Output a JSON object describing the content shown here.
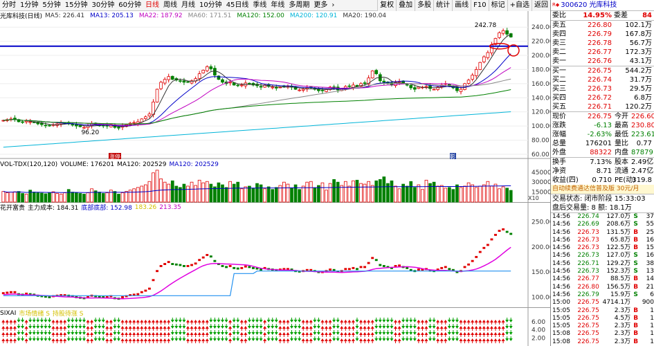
{
  "toolbar": {
    "timeframes": [
      "分时",
      "1分钟",
      "5分钟",
      "15分钟",
      "30分钟",
      "60分钟",
      "日线",
      "周线",
      "月线",
      "10分钟",
      "45日线",
      "季线",
      "年线",
      "多周期",
      "更多"
    ],
    "active_timeframe": "日线",
    "dropdown_glyph": "›",
    "buttons": [
      "复权",
      "叠加",
      "多股",
      "统计",
      "画线",
      "F10",
      "标记",
      "+自选",
      "返回"
    ]
  },
  "main_chart": {
    "title": "光库科技(日线)",
    "indicators": [
      {
        "label": "MA5: 226.41",
        "color": "#333333"
      },
      {
        "label": "MA13: 205.13",
        "color": "#0000c8"
      },
      {
        "label": "MA22: 187.92",
        "color": "#c000c0"
      },
      {
        "label": "MA60: 171.51",
        "color": "#888888"
      },
      {
        "label": "MA120: 152.00",
        "color": "#008000"
      },
      {
        "label": "MA200: 120.91",
        "color": "#00b4d8"
      },
      {
        "label": "MA20: 190.04",
        "color": "#333333"
      }
    ],
    "high_label": "242.78",
    "low_label": "96.20",
    "badge_left": "涨停",
    "badge_right": "影",
    "y_ticks": [
      "240.00",
      "220.00",
      "200.00",
      "180.00",
      "160.00",
      "140.00",
      "120.00",
      "100.00",
      "80.00",
      "60.00"
    ],
    "ylim": [
      55,
      250
    ]
  },
  "volume_chart": {
    "header": [
      {
        "label": "VOL-TDX(120,120)",
        "color": "#000000"
      },
      {
        "label": "VOLUME: 176201",
        "color": "#000000"
      },
      {
        "label": "MA120: 202529",
        "color": "#000000"
      },
      {
        "label": "MA120: 202529",
        "color": "#0000c8"
      }
    ],
    "y_ticks": [
      "45000",
      "30000",
      "15000"
    ],
    "unit": "X10"
  },
  "cost_chart": {
    "header": [
      {
        "label": "花开富贵",
        "color": "#000000"
      },
      {
        "label": "主力成本: 184.31",
        "color": "#000000"
      },
      {
        "label": "底部底部: 152.98",
        "color": "#0000c8"
      },
      {
        "label": "183.26",
        "color": "#d4c000"
      },
      {
        "label": "213.35",
        "color": "#c000c0"
      }
    ],
    "y_ticks": [
      "250.00",
      "200.00",
      "150.00",
      "100.00"
    ]
  },
  "signal_chart": {
    "header": [
      {
        "label": "SIXAI",
        "color": "#000000"
      },
      {
        "label": "市场情绪 S",
        "color": "#d4c000"
      },
      {
        "label": "持股待涨 S",
        "color": "#d4c000"
      }
    ],
    "y_ticks": [
      "6.00",
      "4.00",
      "2.00"
    ]
  },
  "quote": {
    "header_code": "300620",
    "header_name": "光库科技",
    "weibi": {
      "label": "委比",
      "value": "14.95%",
      "label2": "委差",
      "value2": "84"
    },
    "asks": [
      {
        "label": "卖五",
        "price": "226.80",
        "vol": "102.1万"
      },
      {
        "label": "卖四",
        "price": "226.79",
        "vol": "167.8万"
      },
      {
        "label": "卖三",
        "price": "226.78",
        "vol": "56.7万"
      },
      {
        "label": "卖二",
        "price": "226.77",
        "vol": "172.3万"
      },
      {
        "label": "卖一",
        "price": "226.76",
        "vol": "43.1万"
      }
    ],
    "bids": [
      {
        "label": "买一",
        "price": "226.75",
        "vol": "544.2万"
      },
      {
        "label": "买二",
        "price": "226.74",
        "vol": "31.7万"
      },
      {
        "label": "买三",
        "price": "226.73",
        "vol": "29.5万"
      },
      {
        "label": "买四",
        "price": "226.72",
        "vol": "6.8万"
      },
      {
        "label": "买五",
        "price": "226.71",
        "vol": "120.2万"
      }
    ],
    "stats": [
      {
        "l1": "现价",
        "v1": "226.75",
        "c1": "red",
        "l2": "今开",
        "v2": "226.60",
        "c2": "red"
      },
      {
        "l1": "涨跌",
        "v1": "-6.13",
        "c1": "green",
        "l2": "最高",
        "v2": "230.80",
        "c2": "red"
      },
      {
        "l1": "涨幅",
        "v1": "-2.63%",
        "c1": "green",
        "l2": "最低",
        "v2": "223.61",
        "c2": "green"
      },
      {
        "l1": "总量",
        "v1": "176201",
        "c1": "black",
        "l2": "量比",
        "v2": "0.77",
        "c2": "black"
      },
      {
        "l1": "外盘",
        "v1": "88322",
        "c1": "red",
        "l2": "内盘",
        "v2": "87879",
        "c2": "green"
      }
    ],
    "stats2": [
      {
        "l1": "换手",
        "v1": "7.13%",
        "l2": "股本",
        "v2": "2.49亿"
      },
      {
        "l1": "净资",
        "v1": "8.71",
        "l2": "流通",
        "v2": "2.47亿"
      },
      {
        "l1": "收益(四)",
        "v1": "0.710",
        "l2": "PE(动)",
        "v2": "319.8"
      }
    ],
    "promo": "自动续费通达信普及版 30元/月",
    "status_line": "交易状态: 闭市阶段 15:33:03",
    "after_hours": "盘后交易量: 8  额: 18.1万",
    "ticks": [
      {
        "t": "14:56",
        "p": "226.74",
        "v": "127.0万",
        "s": "S",
        "n": "37"
      },
      {
        "t": "14:56",
        "p": "226.69",
        "v": "208.6万",
        "s": "S",
        "n": "55"
      },
      {
        "t": "14:56",
        "p": "226.73",
        "v": "131.5万",
        "s": "B",
        "n": "25"
      },
      {
        "t": "14:56",
        "p": "226.73",
        "v": "65.8万",
        "s": "B",
        "n": "16"
      },
      {
        "t": "14:56",
        "p": "226.73",
        "v": "122.5万",
        "s": "B",
        "n": "15"
      },
      {
        "t": "14:56",
        "p": "226.73",
        "v": "127.0万",
        "s": "S",
        "n": "16"
      },
      {
        "t": "14:56",
        "p": "226.71",
        "v": "129.2万",
        "s": "S",
        "n": "38"
      },
      {
        "t": "14:56",
        "p": "226.73",
        "v": "152.3万",
        "s": "S",
        "n": "13"
      },
      {
        "t": "14:56",
        "p": "226.77",
        "v": "88.5万",
        "s": "B",
        "n": "14"
      },
      {
        "t": "14:56",
        "p": "226.80",
        "v": "156.5万",
        "s": "B",
        "n": "21"
      },
      {
        "t": "14:56",
        "p": "226.79",
        "v": "15.9万",
        "s": "S",
        "n": "6"
      },
      {
        "t": "15:00",
        "p": "226.75",
        "v": "4714.1万",
        "s": "",
        "n": "900"
      },
      {
        "t": "15:05",
        "p": "226.75",
        "v": "2.3万",
        "s": "B",
        "n": "1"
      },
      {
        "t": "15:05",
        "p": "226.75",
        "v": "4.5万",
        "s": "B",
        "n": "1"
      },
      {
        "t": "15:05",
        "p": "226.75",
        "v": "2.3万",
        "s": "B",
        "n": "1"
      },
      {
        "t": "15:08",
        "p": "226.75",
        "v": "2.3万",
        "s": "B",
        "n": "1"
      },
      {
        "t": "15:08",
        "p": "226.75",
        "v": "2.3万",
        "s": "B",
        "n": "1"
      }
    ]
  },
  "chart_data": [
    {
      "type": "candlestick",
      "title": "光库科技(日线)",
      "ylim": [
        55,
        250
      ],
      "closes": [
        108,
        109,
        110,
        110,
        106,
        105,
        107,
        106,
        105,
        103,
        102,
        101,
        100,
        102,
        103,
        104,
        104,
        103,
        102,
        100,
        99,
        98,
        100,
        103,
        102,
        101,
        100,
        100,
        102,
        98,
        97,
        100,
        102,
        104,
        105,
        106,
        110,
        113,
        117,
        134,
        152,
        162,
        166,
        170,
        166,
        165,
        164,
        162,
        162,
        164,
        167,
        174,
        179,
        184,
        181,
        172,
        166,
        162,
        160,
        162,
        158,
        157,
        158,
        161,
        160,
        158,
        157,
        155,
        158,
        156,
        155,
        154,
        155,
        156,
        156,
        155,
        152,
        151,
        152,
        154,
        154,
        152,
        150,
        150,
        152,
        155,
        154,
        151,
        152,
        156,
        156,
        158,
        156,
        160,
        160,
        168,
        178,
        174,
        164,
        162,
        160,
        158,
        162,
        163,
        160,
        158,
        154,
        152,
        155,
        155,
        156,
        153,
        152,
        155,
        158,
        160,
        156,
        154,
        150,
        152,
        160,
        165,
        172,
        180,
        190,
        198,
        204,
        215,
        224,
        232,
        235,
        230,
        226
      ]
    },
    {
      "type": "bar",
      "title": "VOL-TDX(120,120)",
      "values": [
        16000,
        14000,
        15000,
        15500,
        16000,
        13000,
        12000,
        18000,
        15000,
        14000,
        13500,
        12500,
        14000,
        15500,
        13000,
        12000,
        14000,
        19000,
        15000,
        14000,
        13000,
        12000,
        14000,
        20000,
        17000,
        15000,
        13000,
        14000,
        18000,
        16000,
        12000,
        14000,
        16000,
        18000,
        20000,
        22000,
        24000,
        26000,
        31000,
        44000,
        48000,
        35000,
        30000,
        27000,
        32000,
        24000,
        22000,
        27000,
        24000,
        30000,
        25000,
        33000,
        29000,
        31000,
        27000,
        23000,
        29000,
        26000,
        22000,
        31000,
        27000,
        30000,
        20000,
        23000,
        24000,
        21000,
        28000,
        26000,
        20000,
        23000,
        19000,
        22000,
        25000,
        30000,
        27000,
        21000,
        26000,
        19000,
        24000,
        30000,
        31000,
        21000,
        25000,
        29000,
        18000,
        28000,
        34000,
        30000,
        25000,
        31000,
        24000,
        32000,
        33000,
        28000,
        27000,
        31000,
        25000,
        32000,
        34000,
        38000,
        28000,
        32000,
        24000,
        20000,
        27000,
        24000,
        31000,
        22000,
        26000,
        19000,
        33000,
        28000,
        30000,
        24000,
        25000,
        21000,
        22000,
        19000,
        26000,
        22000,
        24000,
        29000,
        26000,
        22000,
        24000,
        26000,
        31000,
        24000,
        27000,
        20000,
        23000,
        21000,
        17600
      ]
    }
  ]
}
